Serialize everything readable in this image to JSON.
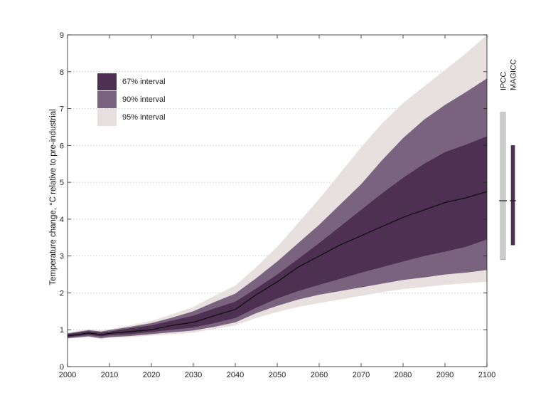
{
  "chart_data": {
    "type": "area",
    "ylabel": "Temperature change, °C relative to pre-industrial",
    "xlabel": "",
    "xlim": [
      2000,
      2100
    ],
    "ylim": [
      0,
      9
    ],
    "x_ticks": [
      "2000",
      "2010",
      "2020",
      "2030",
      "2040",
      "2050",
      "2060",
      "2070",
      "2080",
      "2090",
      "2100"
    ],
    "y_ticks": [
      "0",
      "1",
      "2",
      "3",
      "4",
      "5",
      "6",
      "7",
      "8",
      "9"
    ],
    "grid": "horizontal dotted",
    "legend_position": "top-left",
    "x": [
      2000,
      2005,
      2008,
      2010,
      2015,
      2020,
      2025,
      2030,
      2035,
      2040,
      2045,
      2050,
      2055,
      2060,
      2065,
      2070,
      2075,
      2080,
      2085,
      2090,
      2095,
      2100
    ],
    "series": [
      {
        "name": "95% interval",
        "color": "#e8dfdf",
        "lower": [
          0.75,
          0.8,
          0.75,
          0.78,
          0.8,
          0.84,
          0.88,
          0.92,
          1.02,
          1.12,
          1.32,
          1.48,
          1.62,
          1.72,
          1.82,
          1.92,
          2.02,
          2.1,
          2.16,
          2.22,
          2.26,
          2.3
        ],
        "upper": [
          0.92,
          1.02,
          0.98,
          1.02,
          1.12,
          1.24,
          1.42,
          1.62,
          1.92,
          2.2,
          2.7,
          3.25,
          3.9,
          4.55,
          5.25,
          5.95,
          6.6,
          7.15,
          7.6,
          8.05,
          8.5,
          9.0
        ]
      },
      {
        "name": "90% interval",
        "color": "#7a637e",
        "lower": [
          0.77,
          0.82,
          0.77,
          0.8,
          0.83,
          0.88,
          0.93,
          0.98,
          1.08,
          1.2,
          1.45,
          1.65,
          1.82,
          1.95,
          2.05,
          2.15,
          2.25,
          2.35,
          2.42,
          2.5,
          2.55,
          2.62
        ],
        "upper": [
          0.9,
          0.99,
          0.95,
          0.99,
          1.08,
          1.18,
          1.33,
          1.5,
          1.75,
          1.98,
          2.4,
          2.85,
          3.35,
          3.85,
          4.4,
          4.95,
          5.6,
          6.2,
          6.7,
          7.1,
          7.45,
          7.82
        ]
      },
      {
        "name": "67% interval",
        "color": "#4d3052",
        "lower": [
          0.8,
          0.86,
          0.82,
          0.85,
          0.88,
          0.94,
          1.0,
          1.06,
          1.18,
          1.32,
          1.6,
          1.85,
          2.05,
          2.22,
          2.38,
          2.55,
          2.7,
          2.85,
          3.0,
          3.12,
          3.25,
          3.45
        ],
        "upper": [
          0.88,
          0.96,
          0.92,
          0.95,
          1.04,
          1.12,
          1.25,
          1.38,
          1.58,
          1.76,
          2.12,
          2.5,
          2.92,
          3.35,
          3.8,
          4.25,
          4.7,
          5.12,
          5.5,
          5.82,
          6.02,
          6.25
        ]
      }
    ],
    "median": {
      "color": "#111111",
      "values": [
        0.83,
        0.91,
        0.87,
        0.9,
        0.95,
        1.0,
        1.12,
        1.2,
        1.38,
        1.55,
        1.95,
        2.3,
        2.7,
        3.0,
        3.3,
        3.55,
        3.8,
        4.05,
        4.25,
        4.45,
        4.58,
        4.75
      ]
    },
    "side_bars": [
      {
        "label": "IPCC",
        "color": "#cccccc",
        "edge": "#999999",
        "low": 2.9,
        "high": 6.9,
        "mid": 4.5
      },
      {
        "label": "MAGICC",
        "color": "#4d3052",
        "edge": "#4d3052",
        "low": 3.3,
        "high": 6.0,
        "mid": 4.5
      }
    ]
  },
  "legend": {
    "items": [
      {
        "label": "67% interval",
        "color": "#4d3052"
      },
      {
        "label": "90% interval",
        "color": "#7a637e"
      },
      {
        "label": "95% interval",
        "color": "#e8dfdf"
      }
    ]
  }
}
